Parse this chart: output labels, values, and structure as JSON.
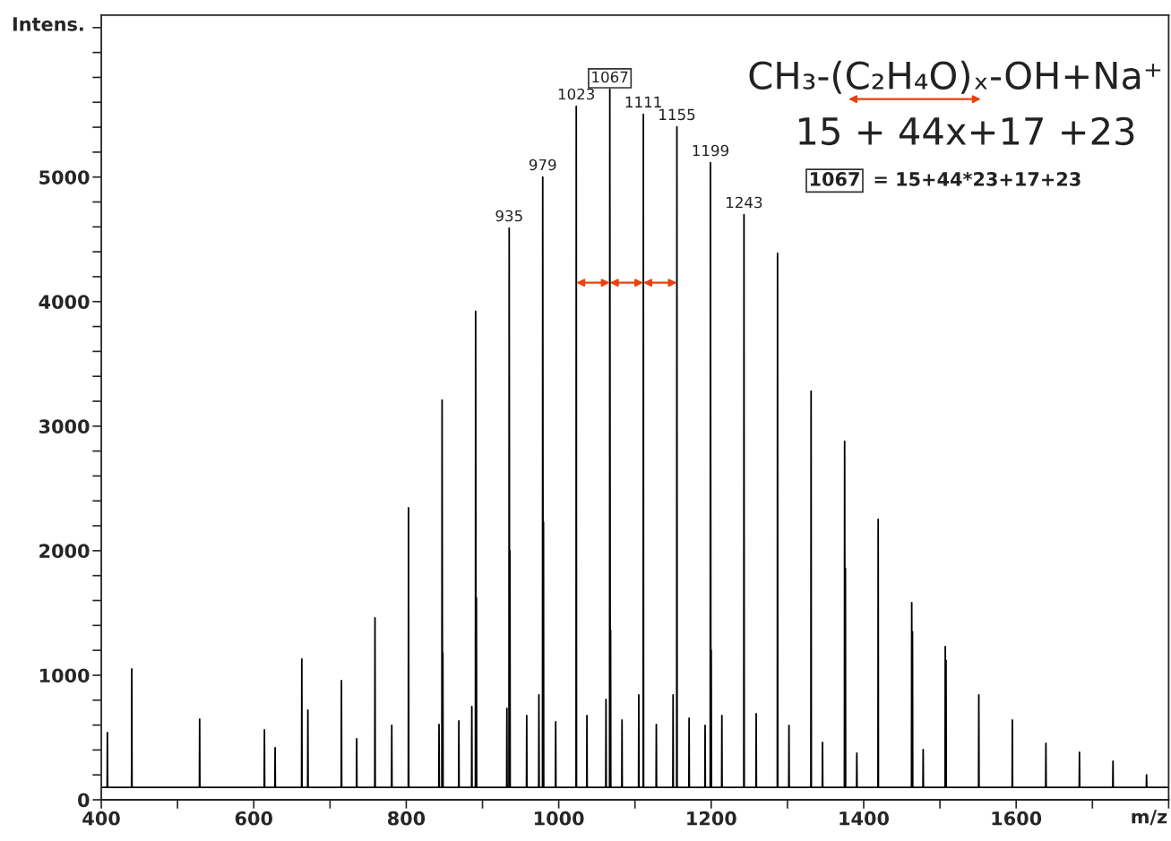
{
  "chart_data": {
    "type": "line",
    "xlabel": "m/z",
    "ylabel": "Intens.",
    "xlim": [
      400,
      1800
    ],
    "ylim": [
      0,
      6300
    ],
    "xticks": [
      400,
      600,
      800,
      1000,
      1200,
      1400,
      1600
    ],
    "yticks": [
      0,
      1000,
      2000,
      3000,
      4000,
      5000
    ],
    "grid": false,
    "legend": false,
    "marker": "none",
    "line_style": "solid",
    "series": [
      {
        "color": "#000000",
        "x": [
          400,
          407.7,
          408,
          408.3,
          439.7,
          440,
          440.3,
          528.7,
          529,
          529.3,
          613.7,
          614,
          614.3,
          627.7,
          628,
          628.3,
          662.7,
          663,
          663.3,
          670.7,
          671,
          671.3,
          714.7,
          715,
          715.3,
          734.7,
          735,
          735.3,
          758.7,
          759,
          759.3,
          780.7,
          781,
          781.3,
          802.7,
          803,
          803.3,
          842.7,
          843,
          843.3,
          846.7,
          847,
          847.6,
          848,
          848.3,
          868.7,
          869,
          869.3,
          885.7,
          886,
          886.3,
          890.7,
          891,
          891.6,
          892,
          892.3,
          931.7,
          932,
          932.3,
          934.7,
          935,
          935.6,
          936,
          936.3,
          957.7,
          958,
          958.3,
          973.7,
          974,
          974.3,
          978.7,
          979,
          979.6,
          980,
          980.3,
          995.7,
          996,
          996.3,
          1022.7,
          1023,
          1023.3,
          1036.7,
          1037,
          1037.3,
          1061.7,
          1062,
          1062.3,
          1066.7,
          1067,
          1067.6,
          1068,
          1068.3,
          1082.7,
          1083,
          1083.3,
          1104.7,
          1105,
          1105.3,
          1110.7,
          1111,
          1111.3,
          1127.7,
          1128,
          1128.3,
          1149.7,
          1150,
          1150.3,
          1154.7,
          1155,
          1155.3,
          1170.7,
          1171,
          1171.3,
          1191.7,
          1192,
          1192.3,
          1198.7,
          1199,
          1199.6,
          1200,
          1200.3,
          1213.7,
          1214,
          1214.3,
          1242.7,
          1243,
          1243.3,
          1258.7,
          1259,
          1259.3,
          1286.7,
          1287,
          1287.3,
          1301.7,
          1302,
          1302.3,
          1330.7,
          1331,
          1331.3,
          1345.7,
          1346,
          1346.3,
          1374.7,
          1375,
          1375.6,
          1376,
          1376.3,
          1390.7,
          1391,
          1391.3,
          1418.7,
          1419,
          1419.3,
          1462.7,
          1463,
          1463.6,
          1464,
          1464.3,
          1477.7,
          1478,
          1478.3,
          1506.7,
          1507,
          1507.6,
          1508,
          1508.3,
          1550.7,
          1551,
          1551.3,
          1594.7,
          1595,
          1595.3,
          1638.7,
          1639,
          1639.3,
          1682.7,
          1683,
          1683.3,
          1726.7,
          1727,
          1727.3,
          1770.7,
          1771,
          1771.3,
          1800
        ],
        "values": [
          100,
          100,
          540,
          100,
          100,
          1050,
          100,
          100,
          647,
          100,
          100,
          561,
          100,
          100,
          417,
          100,
          100,
          1130,
          100,
          100,
          720,
          100,
          100,
          957,
          100,
          100,
          490,
          100,
          100,
          1460,
          100,
          100,
          597,
          100,
          100,
          2345,
          100,
          100,
          604,
          100,
          100,
          3209,
          100,
          1180,
          100,
          100,
          633,
          100,
          100,
          748,
          100,
          100,
          3921,
          100,
          1620,
          100,
          100,
          734,
          100,
          100,
          4590,
          100,
          2000,
          100,
          100,
          676,
          100,
          100,
          842,
          100,
          100,
          5000,
          100,
          2230,
          100,
          100,
          626,
          100,
          100,
          5568,
          100,
          100,
          676,
          100,
          100,
          806,
          100,
          100,
          5705,
          100,
          1360,
          100,
          100,
          640,
          100,
          100,
          842,
          100,
          100,
          5504,
          100,
          100,
          604,
          100,
          100,
          842,
          100,
          100,
          5403,
          100,
          100,
          655,
          100,
          100,
          597,
          100,
          100,
          5115,
          100,
          1200,
          100,
          100,
          676,
          100,
          100,
          4698,
          100,
          100,
          691,
          100,
          100,
          4388,
          100,
          100,
          597,
          100,
          100,
          3281,
          100,
          100,
          460,
          100,
          100,
          2878,
          100,
          1860,
          100,
          100,
          374,
          100,
          100,
          2252,
          100,
          100,
          1583,
          100,
          1350,
          100,
          100,
          403,
          100,
          100,
          1230,
          100,
          1120,
          100,
          100,
          842,
          100,
          100,
          640,
          100,
          100,
          453,
          100,
          100,
          381,
          100,
          100,
          309,
          100,
          100,
          200,
          100,
          100
        ]
      }
    ],
    "annotations": [
      {
        "text": "935",
        "x": 935,
        "y": 4590
      },
      {
        "text": "979",
        "x": 979,
        "y": 5000
      },
      {
        "text": "1023",
        "x": 1023,
        "y": 5568
      },
      {
        "text": "1067",
        "x": 1067,
        "y": 5705
      },
      {
        "text": "1111",
        "x": 1111,
        "y": 5504
      },
      {
        "text": "1155",
        "x": 1155,
        "y": 5403
      },
      {
        "text": "1199",
        "x": 1199,
        "y": 5115
      },
      {
        "text": "1243",
        "x": 1243,
        "y": 4698
      },
      "CH₃-(C₂H₄O)ₓ-OH+Na⁺",
      "15 + 44x+17 +23",
      "1067",
      "= 15+44*23+17+23"
    ]
  }
}
